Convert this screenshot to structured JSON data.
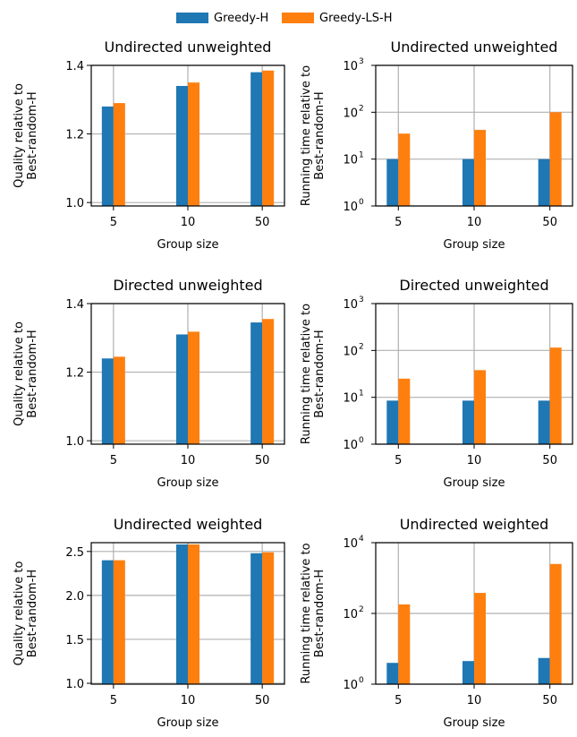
{
  "colors": {
    "greedy": "#1f77b4",
    "ls": "#ff7f0e",
    "grid": "#b0b0b0"
  },
  "legend": {
    "entries": [
      {
        "name": "Greedy-H",
        "color": "#1f77b4"
      },
      {
        "name": "Greedy-LS-H",
        "color": "#ff7f0e"
      }
    ]
  },
  "chart_data": [
    {
      "type": "bar",
      "scale": "linear",
      "title": "Undirected unweighted",
      "xlabel": "Group size",
      "ylabel": [
        "Quality relative to",
        "Best-random-H"
      ],
      "categories": [
        "5",
        "10",
        "50"
      ],
      "series": [
        {
          "name": "Greedy-H",
          "values": [
            1.28,
            1.34,
            1.38
          ]
        },
        {
          "name": "Greedy-LS-H",
          "values": [
            1.29,
            1.35,
            1.385
          ]
        }
      ],
      "ylim": [
        0.99,
        1.4
      ],
      "yticks": [
        1.0,
        1.2,
        1.4
      ],
      "ytick_labels": [
        "1.0",
        "1.2",
        "1.4"
      ],
      "grid": true
    },
    {
      "type": "bar",
      "scale": "log",
      "title": "Undirected unweighted",
      "xlabel": "Group size",
      "ylabel": [
        "Running time relative to",
        "Best-random-H"
      ],
      "categories": [
        "5",
        "10",
        "50"
      ],
      "series": [
        {
          "name": "Greedy-H",
          "values": [
            10,
            10,
            10
          ]
        },
        {
          "name": "Greedy-LS-H",
          "values": [
            35,
            42,
            100
          ]
        }
      ],
      "ylim": [
        1,
        1000
      ],
      "yticks": [
        1,
        10,
        100,
        1000
      ],
      "ytick_labels": [
        "10",
        "10",
        "10",
        "10"
      ],
      "ytick_exps": [
        "0",
        "1",
        "2",
        "3"
      ],
      "grid": true
    },
    {
      "type": "bar",
      "scale": "linear",
      "title": "Directed unweighted",
      "xlabel": "Group size",
      "ylabel": [
        "Quality relative to",
        "Best-random-H"
      ],
      "categories": [
        "5",
        "10",
        "50"
      ],
      "series": [
        {
          "name": "Greedy-H",
          "values": [
            1.24,
            1.31,
            1.345
          ]
        },
        {
          "name": "Greedy-LS-H",
          "values": [
            1.245,
            1.318,
            1.355
          ]
        }
      ],
      "ylim": [
        0.99,
        1.4
      ],
      "yticks": [
        1.0,
        1.2,
        1.4
      ],
      "ytick_labels": [
        "1.0",
        "1.2",
        "1.4"
      ],
      "grid": true
    },
    {
      "type": "bar",
      "scale": "log",
      "title": "Directed unweighted",
      "xlabel": "Group size",
      "ylabel": [
        "Running time relative to",
        "Best-random-H"
      ],
      "categories": [
        "5",
        "10",
        "50"
      ],
      "series": [
        {
          "name": "Greedy-H",
          "values": [
            8.5,
            8.5,
            8.5
          ]
        },
        {
          "name": "Greedy-LS-H",
          "values": [
            25,
            38,
            115
          ]
        }
      ],
      "ylim": [
        1,
        1000
      ],
      "yticks": [
        1,
        10,
        100,
        1000
      ],
      "ytick_labels": [
        "10",
        "10",
        "10",
        "10"
      ],
      "ytick_exps": [
        "0",
        "1",
        "2",
        "3"
      ],
      "grid": true
    },
    {
      "type": "bar",
      "scale": "linear",
      "title": "Undirected weighted",
      "xlabel": "Group size",
      "ylabel": [
        "Quality relative to",
        "Best-random-H"
      ],
      "categories": [
        "5",
        "10",
        "50"
      ],
      "series": [
        {
          "name": "Greedy-H",
          "values": [
            2.4,
            2.58,
            2.48
          ]
        },
        {
          "name": "Greedy-LS-H",
          "values": [
            2.4,
            2.58,
            2.49
          ]
        }
      ],
      "ylim": [
        0.99,
        2.6
      ],
      "yticks": [
        1.0,
        1.5,
        2.0,
        2.5
      ],
      "ytick_labels": [
        "1.0",
        "1.5",
        "2.0",
        "2.5"
      ],
      "grid": true
    },
    {
      "type": "bar",
      "scale": "log",
      "title": "Undirected weighted",
      "xlabel": "Group size",
      "ylabel": [
        "Running time relative to",
        "Best-random-H"
      ],
      "categories": [
        "5",
        "10",
        "50"
      ],
      "series": [
        {
          "name": "Greedy-H",
          "values": [
            4,
            4.5,
            5.5
          ]
        },
        {
          "name": "Greedy-LS-H",
          "values": [
            180,
            380,
            2500
          ]
        }
      ],
      "ylim": [
        1,
        10000
      ],
      "yticks": [
        1,
        100,
        10000
      ],
      "ytick_labels": [
        "10",
        "10",
        "10"
      ],
      "ytick_exps": [
        "0",
        "2",
        "4"
      ],
      "grid": true
    }
  ]
}
